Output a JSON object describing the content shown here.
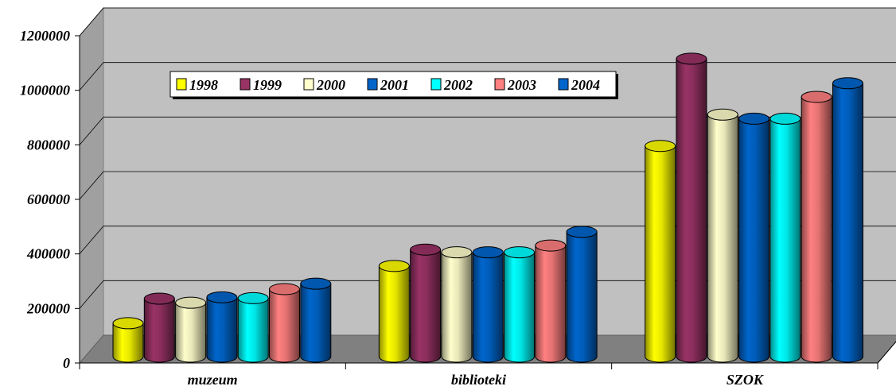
{
  "chart_data": {
    "type": "bar",
    "style": "3d-cylinder",
    "categories": [
      "muzeum",
      "biblioteki",
      "SZOK"
    ],
    "series": [
      {
        "name": "1998",
        "color": "#ffff00",
        "values": [
          140000,
          350000,
          790000
        ]
      },
      {
        "name": "1999",
        "color": "#993366",
        "values": [
          230000,
          410000,
          1110000
        ]
      },
      {
        "name": "2000",
        "color": "#ffffcc",
        "values": [
          215000,
          400000,
          905000
        ]
      },
      {
        "name": "2001",
        "color": "#0066cc",
        "values": [
          235000,
          400000,
          890000
        ]
      },
      {
        "name": "2002",
        "color": "#00ffff",
        "values": [
          232000,
          400000,
          890000
        ]
      },
      {
        "name": "2003",
        "color": "#ff8080",
        "values": [
          265000,
          425000,
          970000
        ]
      },
      {
        "name": "2004",
        "color": "#0066cc",
        "values": [
          285000,
          475000,
          1020000
        ]
      }
    ],
    "ylim": [
      0,
      1200000
    ],
    "yticks": [
      "0",
      "200000",
      "400000",
      "600000",
      "800000",
      "1000000",
      "1200000"
    ],
    "grid": true,
    "legend_position": "top-left",
    "wall_color": "#c0c0c0",
    "floor_color": "#808080"
  }
}
